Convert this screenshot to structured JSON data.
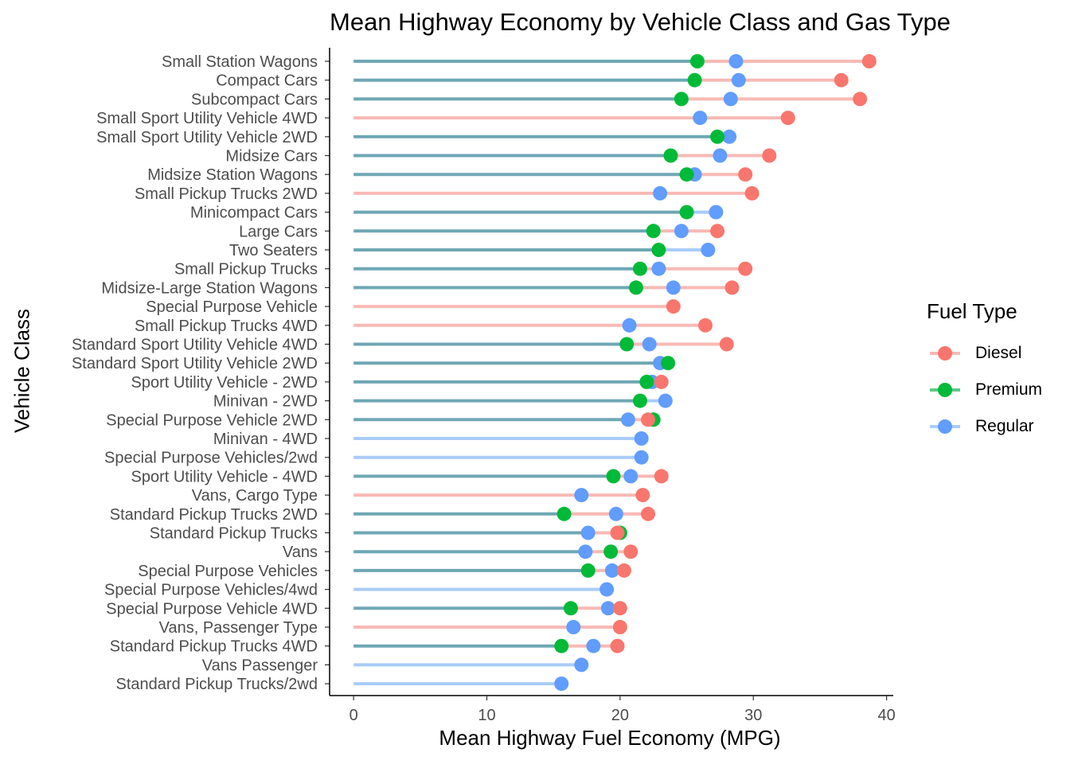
{
  "colors": {
    "Diesel": "#F8766D",
    "Premium": "#00BA38",
    "Regular": "#619CFF",
    "segment_Diesel": "#F8B9B4",
    "segment_Premium": "#5BC88A",
    "segment_Regular": "#A9CCF8",
    "segment_Premium_Regular": "#6FA7B4",
    "segment_Regular_Diesel": "#ABA8DA",
    "segment_Premium_Diesel": "#6FB9C7"
  },
  "chart_data": {
    "type": "lollipop",
    "title": "Mean Highway Economy by Vehicle Class and Gas Type",
    "xlabel": "Mean Highway Fuel Economy (MPG)",
    "ylabel": "Vehicle Class",
    "xlim": [
      -1.8,
      40.5
    ],
    "x_ticks": [
      0,
      10,
      20,
      30,
      40
    ],
    "grid": false,
    "legend": {
      "title": "Fuel Type",
      "position": "right",
      "entries": [
        "Diesel",
        "Premium",
        "Regular"
      ]
    },
    "categories": [
      "Small Station Wagons",
      "Compact Cars",
      "Subcompact Cars",
      "Small Sport Utility Vehicle 4WD",
      "Small Sport Utility Vehicle 2WD",
      "Midsize Cars",
      "Midsize Station Wagons",
      "Small Pickup Trucks 2WD",
      "Minicompact Cars",
      "Large Cars",
      "Two Seaters",
      "Small Pickup Trucks",
      "Midsize-Large Station Wagons",
      "Special Purpose Vehicle",
      "Small Pickup Trucks 4WD",
      "Standard Sport Utility Vehicle 4WD",
      "Standard Sport Utility Vehicle 2WD",
      "Sport Utility Vehicle - 2WD",
      "Minivan - 2WD",
      "Special Purpose Vehicle 2WD",
      "Minivan - 4WD",
      "Special Purpose Vehicles/2wd",
      "Sport Utility Vehicle - 4WD",
      "Vans, Cargo Type",
      "Standard Pickup Trucks 2WD",
      "Standard Pickup Trucks",
      "Vans",
      "Special Purpose Vehicles",
      "Special Purpose Vehicles/4wd",
      "Special Purpose Vehicle 4WD",
      "Vans, Passenger Type",
      "Standard Pickup Trucks 4WD",
      "Vans Passenger",
      "Standard Pickup Trucks/2wd"
    ],
    "series": [
      {
        "name": "Diesel",
        "values": [
          38.7,
          36.6,
          38.0,
          32.6,
          null,
          31.2,
          29.4,
          29.9,
          null,
          27.3,
          null,
          29.4,
          28.4,
          24.0,
          26.4,
          28.0,
          null,
          23.1,
          null,
          22.1,
          null,
          null,
          23.1,
          21.7,
          22.1,
          19.8,
          20.8,
          20.3,
          null,
          20.0,
          20.0,
          19.8,
          null,
          null
        ]
      },
      {
        "name": "Premium",
        "values": [
          25.8,
          25.6,
          24.6,
          null,
          27.3,
          23.8,
          25.0,
          null,
          25.0,
          22.5,
          22.9,
          21.5,
          21.2,
          null,
          null,
          20.5,
          23.6,
          22.0,
          21.5,
          22.5,
          null,
          null,
          19.5,
          null,
          15.8,
          20.0,
          19.3,
          17.6,
          null,
          16.3,
          null,
          15.6,
          null,
          null
        ]
      },
      {
        "name": "Regular",
        "values": [
          28.7,
          28.9,
          28.3,
          26.0,
          28.2,
          27.5,
          25.6,
          23.0,
          27.2,
          24.6,
          26.6,
          22.9,
          24.0,
          null,
          20.7,
          22.2,
          23.0,
          22.4,
          23.4,
          20.6,
          21.6,
          21.6,
          20.8,
          17.1,
          19.7,
          17.6,
          17.4,
          19.4,
          19.0,
          19.1,
          16.5,
          18.0,
          17.1,
          15.6
        ]
      }
    ]
  }
}
